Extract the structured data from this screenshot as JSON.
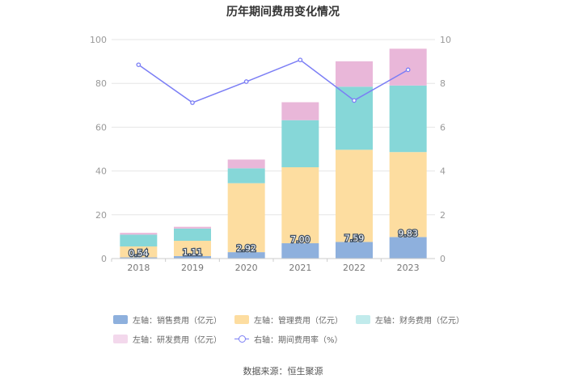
{
  "chart_data": {
    "type": "bar",
    "stacked": true,
    "title": "历年期间费用变化情况",
    "categories": [
      "2018",
      "2019",
      "2020",
      "2021",
      "2022",
      "2023"
    ],
    "series": [
      {
        "name": "左轴：销售费用（亿元）",
        "axis": "left",
        "color": "#8eb0dd",
        "values": [
          0.54,
          1.11,
          2.92,
          7.0,
          7.59,
          9.83
        ],
        "labels": [
          "0.54",
          "1.11",
          "2.92",
          "7.00",
          "7.59",
          "9.83"
        ]
      },
      {
        "name": "左轴：管理费用（亿元）",
        "axis": "left",
        "color": "#fddda0",
        "values": [
          5.0,
          7.0,
          31.5,
          34.7,
          42.1,
          38.8
        ]
      },
      {
        "name": "左轴：财务费用（亿元）",
        "axis": "left",
        "color": "#86d7d8",
        "values": [
          5.4,
          5.6,
          6.8,
          21.5,
          28.8,
          30.4
        ]
      },
      {
        "name": "左轴：研发费用（亿元）",
        "axis": "left",
        "color": "#e9b7d9",
        "values": [
          0.8,
          0.8,
          4.0,
          8.2,
          11.6,
          16.8
        ]
      },
      {
        "name": "右轴：期间费用率（%）",
        "axis": "right",
        "type": "line",
        "color": "#7b7ef5",
        "values": [
          8.85,
          7.12,
          8.08,
          9.07,
          7.22,
          8.62
        ]
      }
    ],
    "left_axis": {
      "min": 0,
      "max": 100,
      "ticks": [
        "0",
        "20",
        "40",
        "60",
        "80",
        "100"
      ]
    },
    "right_axis": {
      "min": 0,
      "max": 10,
      "ticks": [
        "0",
        "2",
        "4",
        "6",
        "8",
        "10"
      ]
    },
    "grid": true,
    "legend_position": "bottom"
  },
  "legend": {
    "sales": "左轴：销售费用（亿元）",
    "admin": "左轴：管理费用（亿元）",
    "finance": "左轴：财务费用（亿元）",
    "rnd": "左轴：研发费用（亿元）",
    "rate": "右轴：期间费用率（%）"
  },
  "source": "数据来源：恒生聚源"
}
